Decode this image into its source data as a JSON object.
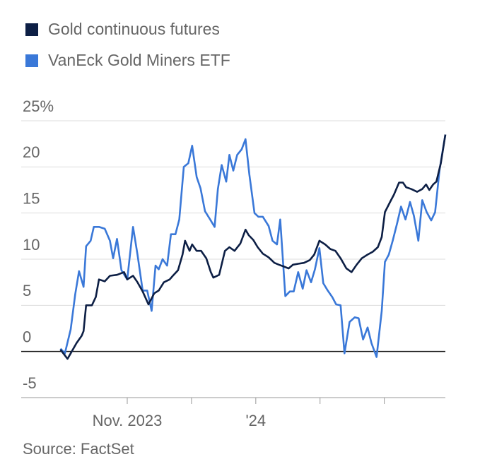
{
  "chart_data": {
    "type": "line",
    "source": "Source: FactSet",
    "xlim": [
      -0.65,
      5.95
    ],
    "xticks": [
      {
        "value": 1,
        "label": "Nov. 2023"
      },
      {
        "value": 2,
        "label": null
      },
      {
        "value": 3,
        "label": "'24"
      },
      {
        "value": 4,
        "label": null
      },
      {
        "value": 5,
        "label": null
      }
    ],
    "ylim": [
      -5,
      25
    ],
    "yticks": [
      -5,
      0,
      5,
      10,
      15,
      {
        "value": 20,
        "label": "20"
      },
      {
        "value": 25,
        "label": "25%"
      }
    ],
    "grid": true,
    "legend": "top-left",
    "series": [
      {
        "name": "Gold continuous futures",
        "color": "#0d1f45",
        "x": [
          -0.04,
          0.07,
          0.12,
          0.21,
          0.29,
          0.32,
          0.36,
          0.45,
          0.51,
          0.56,
          0.65,
          0.73,
          0.84,
          0.95,
          1.0,
          1.09,
          1.16,
          1.24,
          1.33,
          1.42,
          1.49,
          1.57,
          1.66,
          1.71,
          1.79,
          1.86,
          1.9,
          1.97,
          2.01,
          2.08,
          2.15,
          2.23,
          2.3,
          2.34,
          2.43,
          2.52,
          2.59,
          2.67,
          2.76,
          2.84,
          2.89,
          2.96,
          3.03,
          3.11,
          3.2,
          3.29,
          3.36,
          3.44,
          3.51,
          3.58,
          3.66,
          3.75,
          3.84,
          3.91,
          3.99,
          4.08,
          4.16,
          4.24,
          4.32,
          4.41,
          4.49,
          4.57,
          4.65,
          4.74,
          4.82,
          4.9,
          4.96,
          5.01,
          5.09,
          5.15,
          5.23,
          5.29,
          5.34,
          5.42,
          5.51,
          5.59,
          5.65,
          5.7,
          5.76,
          5.81,
          5.88,
          5.95
        ],
        "values": [
          0.2,
          -0.8,
          -0.2,
          0.9,
          1.7,
          2.2,
          5.0,
          5.0,
          5.9,
          7.8,
          7.6,
          8.2,
          8.3,
          8.6,
          7.8,
          8.2,
          7.5,
          6.5,
          5.1,
          6.3,
          6.6,
          7.5,
          7.8,
          8.2,
          8.8,
          10.5,
          12.0,
          10.9,
          11.6,
          10.9,
          10.9,
          10.1,
          8.6,
          8.0,
          8.3,
          10.9,
          11.3,
          10.9,
          11.7,
          13.2,
          12.6,
          12.1,
          11.3,
          10.6,
          10.2,
          9.6,
          9.4,
          9.2,
          9.0,
          9.4,
          9.5,
          9.6,
          9.9,
          10.5,
          12.0,
          11.6,
          11.1,
          10.9,
          10.1,
          9.0,
          8.6,
          9.4,
          10.1,
          10.5,
          10.8,
          11.3,
          12.4,
          15.1,
          16.2,
          17.0,
          18.3,
          18.3,
          17.8,
          17.6,
          17.3,
          17.6,
          18.1,
          17.5,
          18.1,
          18.4,
          20.4,
          23.5
        ]
      },
      {
        "name": "VanEck Gold Miners ETF",
        "color": "#3a78d8",
        "x": [
          -0.04,
          0.03,
          0.12,
          0.19,
          0.25,
          0.32,
          0.36,
          0.43,
          0.48,
          0.56,
          0.65,
          0.73,
          0.78,
          0.84,
          0.91,
          1.0,
          1.09,
          1.16,
          1.24,
          1.31,
          1.38,
          1.44,
          1.49,
          1.55,
          1.62,
          1.68,
          1.75,
          1.81,
          1.88,
          1.95,
          2.01,
          2.08,
          2.14,
          2.21,
          2.29,
          2.36,
          2.41,
          2.47,
          2.54,
          2.59,
          2.65,
          2.71,
          2.78,
          2.84,
          2.9,
          2.98,
          3.04,
          3.11,
          3.2,
          3.26,
          3.33,
          3.38,
          3.46,
          3.53,
          3.59,
          3.66,
          3.73,
          3.79,
          3.86,
          3.92,
          3.99,
          4.05,
          4.12,
          4.19,
          4.25,
          4.32,
          4.38,
          4.46,
          4.54,
          4.6,
          4.67,
          4.74,
          4.8,
          4.88,
          4.96,
          5.01,
          5.07,
          5.13,
          5.2,
          5.26,
          5.33,
          5.4,
          5.46,
          5.53,
          5.59,
          5.66,
          5.73,
          5.79,
          5.86,
          5.95
        ],
        "values": [
          0.3,
          -0.2,
          2.4,
          6.2,
          8.7,
          7.0,
          11.4,
          12.0,
          13.5,
          13.5,
          13.3,
          12.0,
          10.1,
          12.2,
          8.8,
          7.8,
          13.5,
          10.5,
          6.6,
          6.6,
          4.4,
          9.3,
          8.9,
          10.0,
          9.3,
          12.7,
          12.7,
          14.3,
          20.0,
          20.4,
          22.3,
          18.9,
          17.7,
          15.2,
          14.3,
          13.5,
          17.6,
          20.2,
          18.4,
          21.3,
          19.6,
          21.3,
          21.9,
          23.0,
          19.2,
          15.0,
          14.6,
          14.6,
          13.6,
          12.0,
          11.6,
          14.3,
          6.0,
          6.5,
          6.5,
          8.6,
          6.8,
          8.8,
          7.5,
          8.9,
          11.2,
          7.4,
          6.6,
          5.9,
          5.1,
          5.0,
          -0.2,
          3.2,
          3.7,
          3.6,
          1.3,
          2.6,
          0.9,
          -0.6,
          4.4,
          9.7,
          10.5,
          12.0,
          13.9,
          15.7,
          14.3,
          16.2,
          14.7,
          12.0,
          16.4,
          15.1,
          14.2,
          15.1,
          19.7,
          23.5
        ]
      }
    ]
  }
}
